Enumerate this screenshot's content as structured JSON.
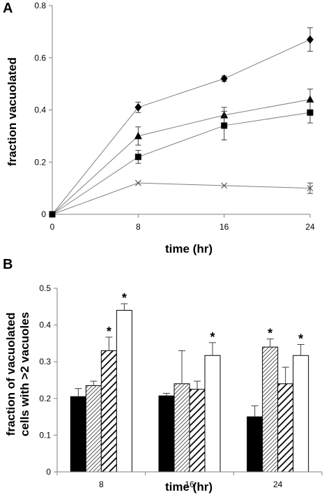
{
  "chart_data": [
    {
      "panel": "A",
      "type": "line",
      "x": [
        0,
        8,
        16,
        24
      ],
      "xlabel": "time (hr)",
      "ylabel": "fraction vacuolated",
      "xlim": [
        0,
        24
      ],
      "ylim": [
        0,
        0.8
      ],
      "x_ticks": [
        "0",
        "8",
        "16",
        "24"
      ],
      "y_ticks": [
        "0",
        "0.2",
        "0.4",
        "0.6",
        "0.8"
      ],
      "grid": false,
      "legend": "none",
      "series": [
        {
          "marker": "diamond",
          "values": [
            0,
            0.41,
            0.52,
            0.67
          ],
          "errors": [
            0,
            0.02,
            0.01,
            0.045
          ]
        },
        {
          "marker": "triangle",
          "values": [
            0,
            0.3,
            0.38,
            0.44
          ],
          "errors": [
            0,
            0.035,
            0.03,
            0.04
          ]
        },
        {
          "marker": "square",
          "values": [
            0,
            0.22,
            0.34,
            0.39
          ],
          "errors": [
            0,
            0.025,
            0.055,
            0.04
          ]
        },
        {
          "marker": "x",
          "values": [
            0,
            0.12,
            0.11,
            0.1
          ],
          "errors": [
            0,
            0,
            0,
            0.02
          ]
        }
      ]
    },
    {
      "panel": "B",
      "type": "bar",
      "categories": [
        "8",
        "16",
        "24"
      ],
      "xlabel": "time (hr)",
      "ylabel": "fraction of vacuolated cells with >2 vacuoles",
      "ylim": [
        0,
        0.5
      ],
      "y_ticks": [
        "0",
        "0.1",
        "0.2",
        "0.3",
        "0.4",
        "0.5"
      ],
      "grid": false,
      "legend": "none",
      "significance_marker": "*",
      "series": [
        {
          "fill": "solid black",
          "values": [
            0.205,
            0.207,
            0.15
          ],
          "errors": [
            0.022,
            0.007,
            0.03
          ],
          "significant": [
            false,
            false,
            false
          ]
        },
        {
          "fill": "fine diagonal hatch",
          "values": [
            0.235,
            0.24,
            0.34
          ],
          "errors": [
            0.012,
            0.09,
            0.022
          ],
          "significant": [
            false,
            false,
            true
          ]
        },
        {
          "fill": "bold diagonal hatch",
          "values": [
            0.33,
            0.225,
            0.24
          ],
          "errors": [
            0.037,
            0.022,
            0.045
          ],
          "significant": [
            true,
            false,
            false
          ]
        },
        {
          "fill": "white",
          "values": [
            0.44,
            0.317,
            0.317
          ],
          "errors": [
            0.018,
            0.035,
            0.03
          ],
          "significant": [
            true,
            true,
            true
          ]
        }
      ]
    }
  ]
}
